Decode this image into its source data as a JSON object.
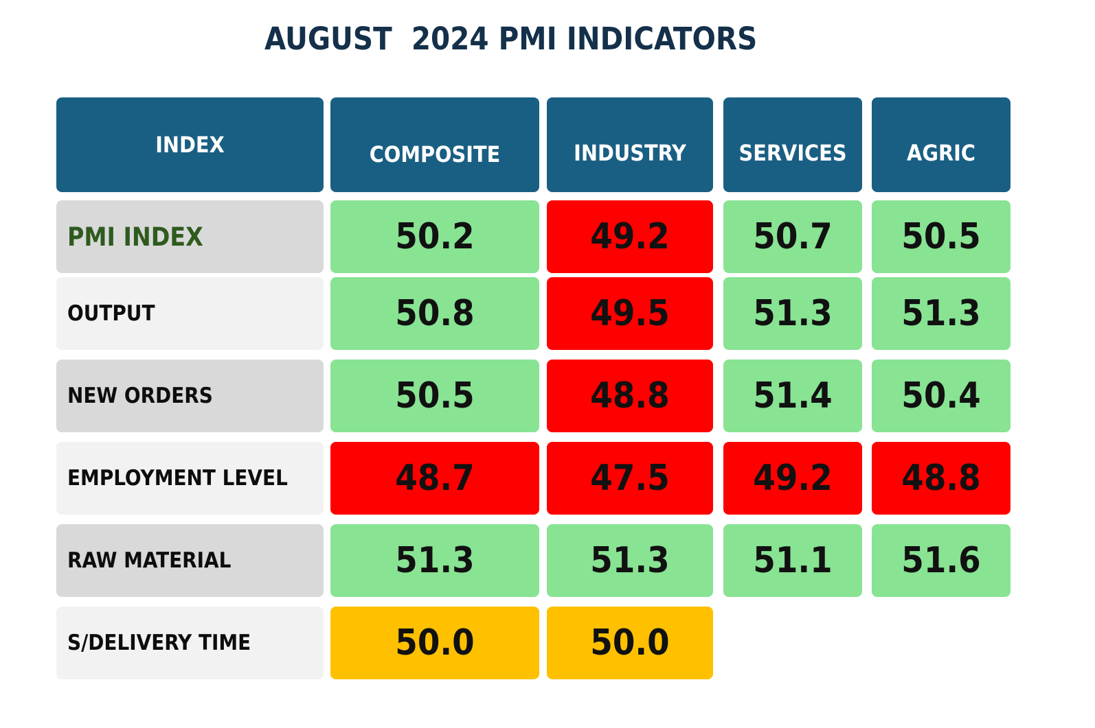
{
  "title": "AUGUST  2024 PMI INDICATORS",
  "colors": {
    "header": "#195f83",
    "above_50": "#88e393",
    "below_50": "#ff0000",
    "neutral_50": "#ffc000",
    "title": "#14304a",
    "accent_label": "#2f5a1e"
  },
  "chart_data": {
    "type": "table",
    "title": "AUGUST  2024 PMI INDICATORS",
    "columns": [
      "INDEX",
      "COMPOSITE",
      "INDUSTRY",
      "SERVICES",
      "AGRIC"
    ],
    "rows": [
      {
        "label": "PMI INDEX",
        "values": [
          "50.2",
          "49.2",
          "50.7",
          "50.5"
        ]
      },
      {
        "label": "OUTPUT",
        "values": [
          "50.8",
          "49.5",
          "51.3",
          "51.3"
        ]
      },
      {
        "label": "NEW ORDERS",
        "values": [
          "50.5",
          "48.8",
          "51.4",
          "50.4"
        ]
      },
      {
        "label": "EMPLOYMENT LEVEL",
        "values": [
          "48.7",
          "47.5",
          "49.2",
          "48.8"
        ]
      },
      {
        "label": "RAW MATERIAL",
        "values": [
          "51.3",
          "51.3",
          "51.1",
          "51.6"
        ]
      },
      {
        "label": "S/DELIVERY TIME",
        "values": [
          "50.0",
          "50.0",
          null,
          null
        ]
      }
    ]
  }
}
